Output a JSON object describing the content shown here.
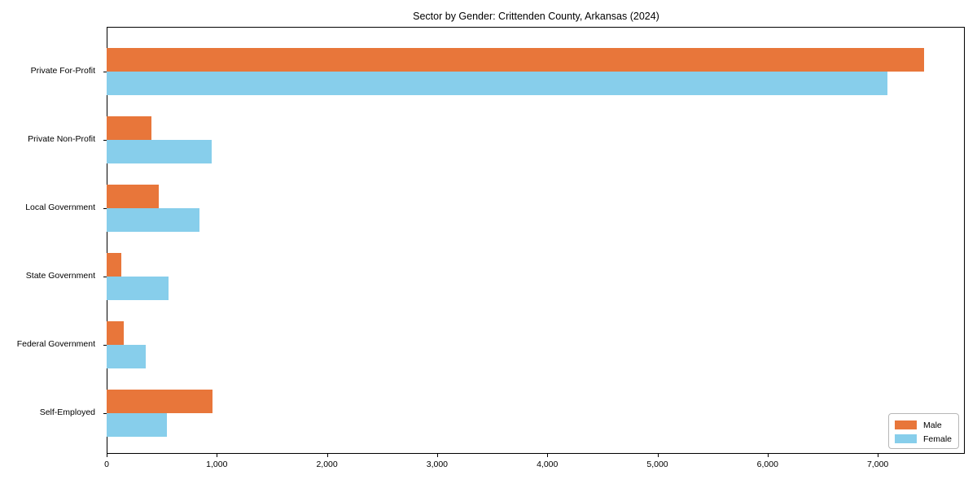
{
  "chart_data": {
    "type": "bar",
    "orientation": "horizontal",
    "title": "Sector by Gender: Crittenden County, Arkansas (2024)",
    "categories": [
      "Private For-Profit",
      "Private Non-Profit",
      "Local Government",
      "State Government",
      "Federal Government",
      "Self-Employed"
    ],
    "series": [
      {
        "name": "Male",
        "color": "#e8763a",
        "values": [
          7420,
          410,
          475,
          135,
          155,
          960
        ]
      },
      {
        "name": "Female",
        "color": "#87ceeb",
        "values": [
          7090,
          955,
          845,
          560,
          355,
          550
        ]
      }
    ],
    "xlabel": "",
    "ylabel": "",
    "xlim": [
      0,
      7790
    ],
    "xticks": [
      0,
      1000,
      2000,
      3000,
      4000,
      5000,
      6000,
      7000
    ],
    "xtick_labels": [
      "0",
      "1,000",
      "2,000",
      "3,000",
      "4,000",
      "5,000",
      "6,000",
      "7,000"
    ],
    "grid": false,
    "legend_position": "lower right"
  }
}
